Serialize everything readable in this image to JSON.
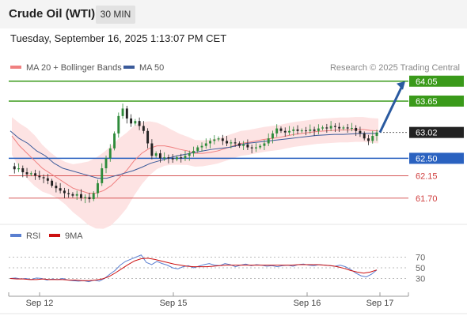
{
  "header": {
    "title": "Crude Oil (WTI)",
    "timeframe": "30 MIN",
    "datetime": "Tuesday, September 16, 2025 1:13:07 PM CET"
  },
  "legend": {
    "ma20_label": "MA 20 + Bollinger Bands",
    "ma50_label": "MA 50",
    "credit": "Research © 2025 Trading Central",
    "rsi_label": "RSI",
    "rsi_ma_label": "9MA"
  },
  "colors": {
    "ma20": "#f08080",
    "ma50": "#3a5a9a",
    "bollinger_fill": "#fde0e0",
    "up_candle": "#2e8b3a",
    "down_candle": "#222222",
    "target_green": "#3a9a1a",
    "support_blue": "#2a62c0",
    "support_red": "#d04040",
    "current_box": "#222222",
    "rsi_line": "#5a7fd0",
    "rsi_ma": "#cc1111"
  },
  "chart_data": [
    {
      "type": "candlestick",
      "ylim": [
        61.3,
        64.3
      ],
      "x_ticks": [
        "Sep 12",
        "Sep 15",
        "Sep 16",
        "Sep 17"
      ],
      "levels": [
        {
          "value": "64.05",
          "kind": "target"
        },
        {
          "value": "63.65",
          "kind": "target"
        },
        {
          "value": "63.02",
          "kind": "current"
        },
        {
          "value": "62.50",
          "kind": "pivot"
        },
        {
          "value": "62.15",
          "kind": "support"
        },
        {
          "value": "61.70",
          "kind": "support"
        }
      ],
      "close_series": [
        62.34,
        62.28,
        62.3,
        62.22,
        62.18,
        62.2,
        62.15,
        62.12,
        62.1,
        62.05,
        61.95,
        61.9,
        61.85,
        61.8,
        61.78,
        61.75,
        61.78,
        61.7,
        61.72,
        61.68,
        61.8,
        62.0,
        62.3,
        62.5,
        62.7,
        63.0,
        63.35,
        63.5,
        63.3,
        63.2,
        63.25,
        63.15,
        63.05,
        62.8,
        62.55,
        62.6,
        62.5,
        62.52,
        62.5,
        62.48,
        62.52,
        62.5,
        62.55,
        62.6,
        62.65,
        62.72,
        62.75,
        62.8,
        62.85,
        62.88,
        62.9,
        62.85,
        62.8,
        62.82,
        62.8,
        62.75,
        62.78,
        62.72,
        62.7,
        62.72,
        62.75,
        62.8,
        62.9,
        63.0,
        63.1,
        63.05,
        63.02,
        63.05,
        63.08,
        63.05,
        63.06,
        63.05,
        63.08,
        63.05,
        63.1,
        63.12,
        63.1,
        63.15,
        63.13,
        63.1,
        63.12,
        63.1,
        63.11,
        63.05,
        63.0,
        62.9,
        62.85,
        62.95,
        63.02
      ],
      "ma20_series": [
        62.95,
        62.75,
        62.6,
        62.45,
        62.3,
        62.2,
        62.1,
        62.0,
        61.9,
        61.85,
        61.8,
        61.8,
        61.85,
        61.95,
        62.1,
        62.25,
        62.45,
        62.6,
        62.7,
        62.75,
        62.75,
        62.72,
        62.68,
        62.65,
        62.6,
        62.6,
        62.62,
        62.65,
        62.7,
        62.75,
        62.8,
        62.82,
        62.85,
        62.88,
        62.9,
        62.92,
        62.95,
        62.98,
        63.0,
        63.02,
        63.04,
        63.05,
        63.06,
        63.07,
        63.07,
        63.08,
        63.08,
        63.06,
        63.05
      ],
      "ma50_series": [
        63.05,
        62.9,
        62.8,
        62.65,
        62.55,
        62.4,
        62.3,
        62.25,
        62.2,
        62.15,
        62.1,
        62.1,
        62.15,
        62.2,
        62.25,
        62.32,
        62.4,
        62.45,
        62.5,
        62.55,
        62.58,
        62.62,
        62.65,
        62.68,
        62.7,
        62.72,
        62.76,
        62.8,
        62.82,
        62.84,
        62.86,
        62.88,
        62.9,
        62.92,
        62.94,
        62.96,
        62.97,
        62.98,
        62.98,
        62.99,
        63.0,
        63.0,
        63.0
      ],
      "projection_target": "64.05"
    },
    {
      "type": "line",
      "name": "RSI panel",
      "y_ticks": [
        "70",
        "50",
        "30"
      ],
      "ylim": [
        10,
        90
      ],
      "rsi_series": [
        30,
        31,
        29,
        30,
        28,
        31,
        30,
        27,
        29,
        28,
        30,
        27,
        26,
        25,
        26,
        24,
        27,
        25,
        30,
        38,
        45,
        55,
        62,
        66,
        70,
        74,
        60,
        56,
        62,
        58,
        55,
        50,
        48,
        52,
        54,
        50,
        53,
        56,
        58,
        55,
        54,
        58,
        56,
        52,
        55,
        57,
        54,
        56,
        55,
        53,
        54,
        52,
        54,
        55,
        53,
        56,
        57,
        55,
        54,
        56,
        55,
        54,
        53,
        55,
        52,
        47,
        40,
        35,
        33,
        38,
        46
      ],
      "rsi_ma_series": [
        30,
        29,
        29,
        28,
        28,
        29,
        28,
        28,
        28,
        27,
        27,
        26,
        26,
        27,
        29,
        33,
        40,
        48,
        56,
        63,
        67,
        68,
        66,
        63,
        60,
        57,
        55,
        53,
        52,
        52,
        52,
        53,
        54,
        55,
        55,
        55,
        55,
        55,
        55,
        55,
        55,
        55,
        55,
        55,
        56,
        56,
        56,
        56,
        55,
        54,
        52,
        49,
        45,
        42,
        40,
        42,
        46
      ]
    }
  ]
}
